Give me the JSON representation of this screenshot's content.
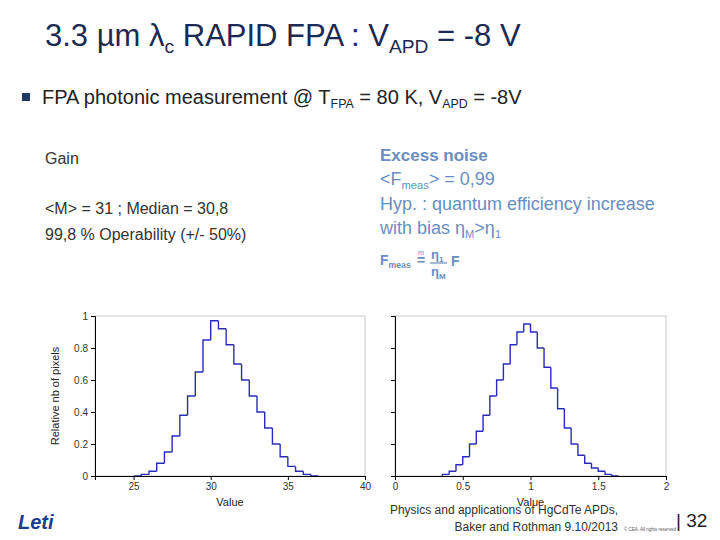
{
  "slide": {
    "title": [
      {
        "text": "3.3 µm λ"
      },
      {
        "text": "c",
        "sub": true
      },
      {
        "text": " RAPID FPA : V"
      },
      {
        "text": "APD",
        "sub": true
      },
      {
        "text": " = -8 V"
      }
    ],
    "bullet": [
      {
        "text": "FPA photonic measurement @ T"
      },
      {
        "text": "FPA",
        "sub": true
      },
      {
        "text": " = 80 K, V"
      },
      {
        "text": "APD",
        "sub": true
      },
      {
        "text": " =  -8V"
      }
    ],
    "gain_text": [
      "Gain",
      "<M> = 31 ; Median = 30,8",
      "99,8 % Operability (+/- 50%)"
    ],
    "noise_text": {
      "heading": "Excess noise",
      "lines": [
        [
          {
            "text": "<F"
          },
          {
            "text": "meas",
            "sub": true
          },
          {
            "text": "> = 0,99"
          }
        ],
        [
          {
            "text": "Hyp. : quantum efficiency increase"
          }
        ],
        [
          {
            "text": "with bias η"
          },
          {
            "text": "M",
            "sub": true
          },
          {
            "text": ">η"
          },
          {
            "text": "1",
            "sub": true
          }
        ]
      ],
      "formula": {
        "lhs": [
          {
            "text": "F"
          },
          {
            "text": "meas",
            "sub": true
          }
        ],
        "relation": "=",
        "relation_mark": "m",
        "numerator": [
          {
            "text": "η"
          },
          {
            "text": "1",
            "sub": true
          }
        ],
        "denominator": [
          {
            "text": "η"
          },
          {
            "text": "M",
            "sub": true
          }
        ],
        "factor": "F"
      }
    },
    "footer": {
      "logo": "Leti",
      "citation": [
        "Physics and applications of HgCdTe APDs,",
        "Baker and Rothman 9.10/2013"
      ],
      "page": "| 32",
      "copyright": "© CEA. All rights reserved"
    }
  },
  "chart_data": [
    {
      "type": "histogram",
      "x_label": "Value",
      "y_label": "Relative nb of pixels",
      "color": "#2b2bb8",
      "bins": [
        25,
        25.5,
        26,
        26.5,
        27,
        27.5,
        28,
        28.5,
        29,
        29.5,
        30,
        30.5,
        31,
        31.5,
        32,
        32.5,
        33,
        33.5,
        34,
        34.5,
        35,
        35.5,
        36,
        36.5,
        37
      ],
      "values": [
        0.0,
        0.01,
        0.03,
        0.08,
        0.15,
        0.25,
        0.38,
        0.5,
        0.65,
        0.85,
        0.97,
        0.92,
        0.82,
        0.7,
        0.6,
        0.5,
        0.4,
        0.3,
        0.2,
        0.12,
        0.06,
        0.03,
        0.01,
        0.0
      ],
      "xlim": [
        22.5,
        40
      ],
      "xticks": [
        25,
        30,
        35,
        40
      ],
      "ylim": [
        0,
        1
      ],
      "yticks": [
        0,
        0.2,
        0.4,
        0.6,
        0.8,
        1
      ]
    },
    {
      "type": "histogram",
      "x_label": "Value",
      "color": "#2b2bb8",
      "tick_labels": "x",
      "bins": [
        0.35,
        0.4,
        0.45,
        0.5,
        0.55,
        0.6,
        0.65,
        0.7,
        0.75,
        0.8,
        0.85,
        0.9,
        0.95,
        1.0,
        1.05,
        1.1,
        1.15,
        1.2,
        1.25,
        1.3,
        1.35,
        1.4,
        1.45,
        1.5,
        1.55,
        1.6,
        1.65
      ],
      "values": [
        0.01,
        0.03,
        0.07,
        0.12,
        0.2,
        0.28,
        0.38,
        0.5,
        0.6,
        0.7,
        0.82,
        0.9,
        0.95,
        0.9,
        0.8,
        0.68,
        0.55,
        0.42,
        0.3,
        0.2,
        0.13,
        0.08,
        0.05,
        0.03,
        0.01,
        0.0
      ],
      "xlim": [
        0,
        2
      ],
      "xticks": [
        0,
        0.5,
        1,
        1.5,
        2
      ],
      "ylim": [
        0,
        1
      ],
      "yticks": [
        0,
        0.2,
        0.4,
        0.6,
        0.8,
        1
      ]
    }
  ]
}
